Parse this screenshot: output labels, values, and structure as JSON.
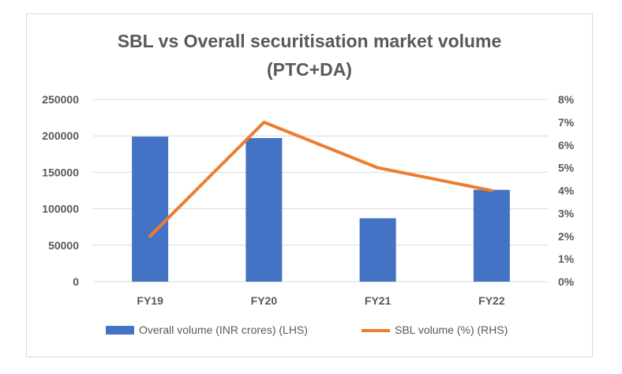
{
  "chart_data": {
    "type": "bar",
    "title_lines": [
      "SBL vs Overall securitisation market volume",
      "(PTC+DA)"
    ],
    "categories": [
      "FY19",
      "FY20",
      "FY21",
      "FY22"
    ],
    "series": [
      {
        "name": "Overall volume (INR crores) (LHS)",
        "type": "bar",
        "axis": "left",
        "color": "#4472c4",
        "values": [
          199000,
          197000,
          87000,
          126000
        ]
      },
      {
        "name": "SBL volume (%) (RHS)",
        "type": "line",
        "axis": "right",
        "color": "#ed7d31",
        "values": [
          2,
          7,
          5,
          4
        ]
      }
    ],
    "y_left": {
      "min": 0,
      "max": 250000,
      "ticks": [
        "0",
        "50000",
        "100000",
        "150000",
        "200000",
        "250000"
      ]
    },
    "y_right": {
      "min": 0,
      "max": 8,
      "ticks": [
        "0%",
        "1%",
        "2%",
        "3%",
        "4%",
        "5%",
        "6%",
        "7%",
        "8%"
      ]
    },
    "grid": true,
    "legend_position": "bottom"
  }
}
